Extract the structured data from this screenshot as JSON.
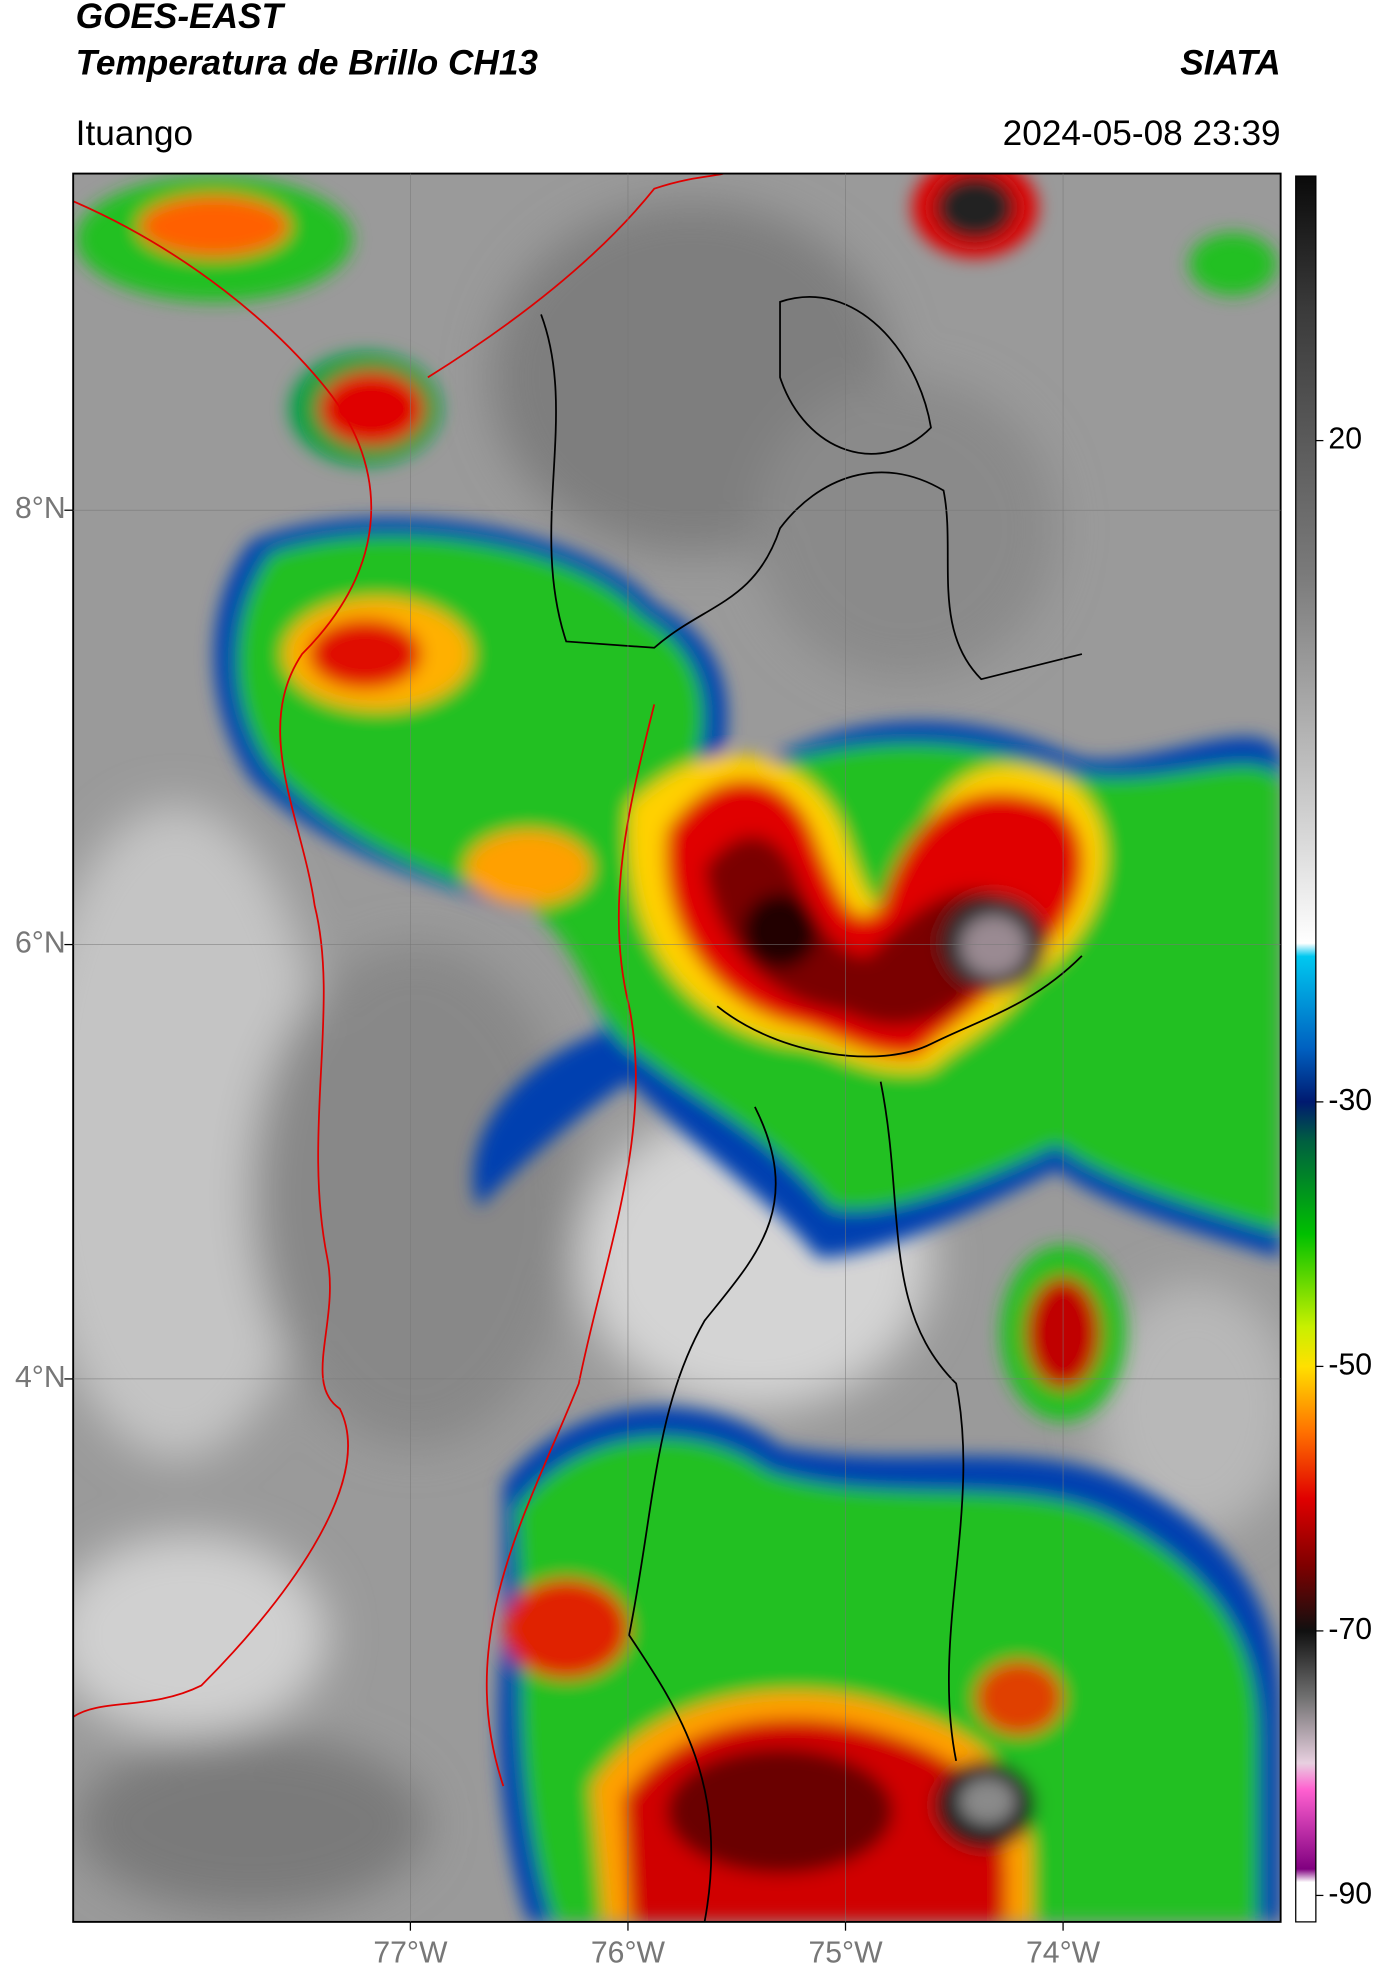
{
  "header": {
    "title": "GOES-EAST",
    "subtitle": "Temperatura de Brillo CH13",
    "source": "SIATA",
    "location": "Ituango",
    "datetime": "2024-05-08 23:39"
  },
  "map": {
    "lonlim": [
      -78.55,
      -73.0
    ],
    "latlim": [
      1.5,
      9.55
    ],
    "lonticks": [
      {
        "value": -77,
        "label": "77°W"
      },
      {
        "value": -76,
        "label": "76°W"
      },
      {
        "value": -75,
        "label": "75°W"
      },
      {
        "value": -74,
        "label": "74°W"
      }
    ],
    "latticks": [
      {
        "value": 8,
        "label": "8°N"
      },
      {
        "value": 6,
        "label": "6°N"
      },
      {
        "value": 4,
        "label": "4°N"
      }
    ],
    "grid": true
  },
  "colorbar": {
    "lim": [
      -92,
      40
    ],
    "ticks": [
      20,
      -30,
      -50,
      -70,
      -90
    ],
    "colormap": [
      {
        "value": 40,
        "color": "#0a0a0a"
      },
      {
        "value": 30,
        "color": "#3a3a3a"
      },
      {
        "value": 10,
        "color": "#7a7a7a"
      },
      {
        "value": -10,
        "color": "#d8d8d8"
      },
      {
        "value": -18,
        "color": "#ffffff"
      },
      {
        "value": -19,
        "color": "#00c8f0"
      },
      {
        "value": -26,
        "color": "#0060c0"
      },
      {
        "value": -30,
        "color": "#001a70"
      },
      {
        "value": -33,
        "color": "#006040"
      },
      {
        "value": -40,
        "color": "#00c000"
      },
      {
        "value": -47,
        "color": "#c8f000"
      },
      {
        "value": -50,
        "color": "#ffe000"
      },
      {
        "value": -55,
        "color": "#ff7000"
      },
      {
        "value": -60,
        "color": "#e00000"
      },
      {
        "value": -65,
        "color": "#800000"
      },
      {
        "value": -70,
        "color": "#101010"
      },
      {
        "value": -75,
        "color": "#707070"
      },
      {
        "value": -80,
        "color": "#e8d0e0"
      },
      {
        "value": -82,
        "color": "#ff60d0"
      },
      {
        "value": -88,
        "color": "#800080"
      },
      {
        "value": -89,
        "color": "#ffffff"
      },
      {
        "value": -92,
        "color": "#ffffff"
      }
    ]
  }
}
